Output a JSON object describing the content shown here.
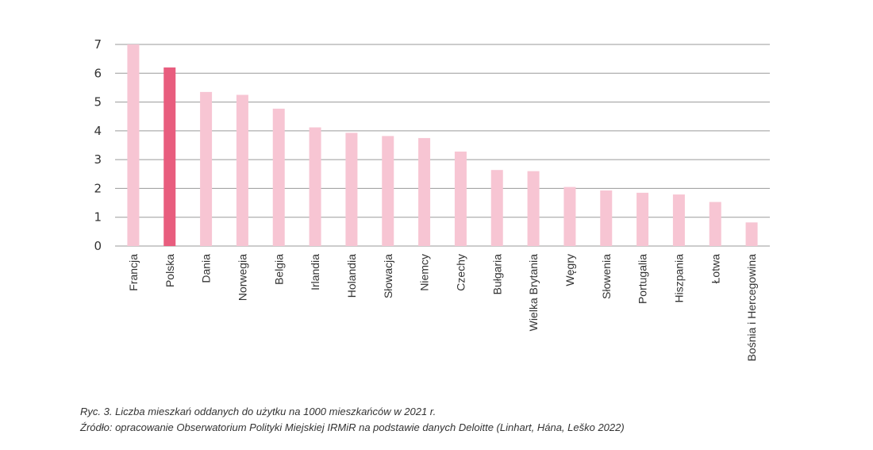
{
  "chart_data": {
    "type": "bar",
    "categories": [
      "Francja",
      "Polska",
      "Dania",
      "Norwegia",
      "Belgia",
      "Irlandia",
      "Holandia",
      "Słowacja",
      "Niemcy",
      "Czechy",
      "Bułgaria",
      "Wielka Brytania",
      "Węgry",
      "Słowenia",
      "Portugalia",
      "Hiszpania",
      "Łotwa",
      "Bośnia i Hercegowina"
    ],
    "values": [
      7.0,
      6.2,
      5.35,
      5.25,
      4.77,
      4.12,
      3.93,
      3.82,
      3.75,
      3.28,
      2.64,
      2.6,
      2.05,
      1.93,
      1.85,
      1.79,
      1.53,
      0.82
    ],
    "highlight_index": 1,
    "colors": {
      "bar": "#f7c5d3",
      "highlight": "#e85d7e",
      "grid": "#9a9a9a"
    },
    "ylim": [
      0,
      7
    ],
    "yticks": [
      0,
      1,
      2,
      3,
      4,
      5,
      6,
      7
    ],
    "grid": true,
    "title": "",
    "xlabel": "",
    "ylabel": ""
  },
  "caption": {
    "line1": "Ryc. 3. Liczba mieszkań oddanych do użytku na 1000 mieszkańców w 2021 r.",
    "line2": "Źródło: opracowanie Obserwatorium Polityki Miejskiej IRMiR na podstawie danych Deloitte (Linhart, Hána, Leško 2022)"
  }
}
